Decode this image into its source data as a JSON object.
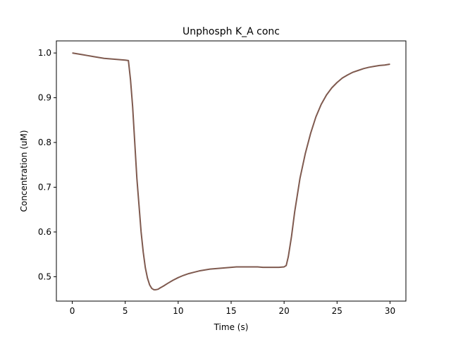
{
  "chart_data": {
    "type": "line",
    "title": "Unphosph K_A conc",
    "xlabel": "Time (s)",
    "ylabel": "Concentration (uM)",
    "xlim": [
      -1.5,
      31.5
    ],
    "ylim": [
      0.4455,
      1.027
    ],
    "xticks": [
      0,
      5,
      10,
      15,
      20,
      25,
      30
    ],
    "yticks": [
      0.5,
      0.6,
      0.7,
      0.8,
      0.9,
      1.0
    ],
    "xtick_labels": [
      "0",
      "5",
      "10",
      "15",
      "20",
      "25",
      "30"
    ],
    "ytick_labels": [
      "0.5",
      "0.6",
      "0.7",
      "0.8",
      "0.9",
      "1.0"
    ],
    "grid": false,
    "legend": "none",
    "line_color": "#7f5a4f",
    "series": [
      {
        "x": [
          0,
          0.5,
          1,
          1.5,
          2,
          2.5,
          3,
          3.5,
          4,
          4.5,
          5,
          5.3,
          5.5,
          5.7,
          5.9,
          6.1,
          6.3,
          6.5,
          6.7,
          6.9,
          7.1,
          7.3,
          7.5,
          7.7,
          7.9,
          8.1,
          8.3,
          8.6,
          9,
          9.5,
          10,
          10.5,
          11,
          11.5,
          12,
          12.5,
          13,
          13.5,
          14,
          14.5,
          15,
          15.5,
          16,
          16.5,
          17,
          17.5,
          18,
          18.5,
          19,
          19.5,
          20,
          20.2,
          20.4,
          20.7,
          21,
          21.5,
          22,
          22.5,
          23,
          23.5,
          24,
          24.5,
          25,
          25.5,
          26,
          26.5,
          27,
          27.5,
          28,
          28.5,
          29,
          29.5,
          30
        ],
        "y": [
          1.0,
          0.998,
          0.996,
          0.994,
          0.992,
          0.99,
          0.988,
          0.987,
          0.986,
          0.985,
          0.984,
          0.983,
          0.94,
          0.88,
          0.8,
          0.72,
          0.66,
          0.6,
          0.555,
          0.52,
          0.497,
          0.482,
          0.474,
          0.471,
          0.471,
          0.472,
          0.475,
          0.479,
          0.485,
          0.492,
          0.498,
          0.503,
          0.507,
          0.51,
          0.513,
          0.515,
          0.517,
          0.518,
          0.519,
          0.52,
          0.521,
          0.522,
          0.522,
          0.522,
          0.522,
          0.522,
          0.521,
          0.521,
          0.521,
          0.521,
          0.522,
          0.525,
          0.545,
          0.59,
          0.645,
          0.72,
          0.775,
          0.82,
          0.857,
          0.885,
          0.906,
          0.922,
          0.934,
          0.944,
          0.951,
          0.957,
          0.961,
          0.965,
          0.968,
          0.97,
          0.972,
          0.973,
          0.975
        ]
      }
    ]
  }
}
